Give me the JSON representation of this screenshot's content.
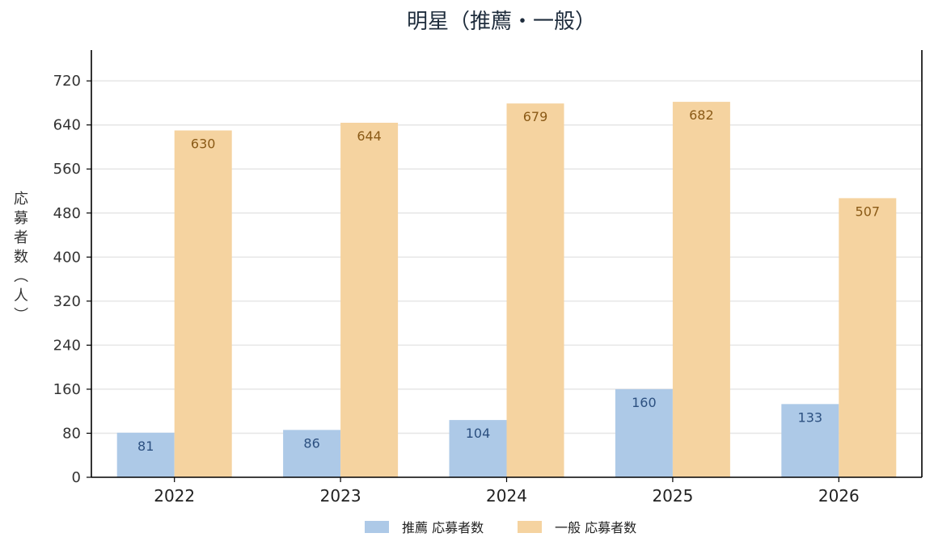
{
  "chart_data": {
    "type": "bar",
    "title": "明星（推薦・一般）",
    "xlabel": "",
    "ylabel": "応募者数（人）",
    "categories": [
      "2022",
      "2023",
      "2024",
      "2025",
      "2026"
    ],
    "series": [
      {
        "name": "推薦 応募者数",
        "values": [
          81,
          86,
          104,
          160,
          133
        ],
        "color": "#adc9e7",
        "label_color": "#2c5080"
      },
      {
        "name": "一般 応募者数",
        "values": [
          630,
          644,
          679,
          682,
          507
        ],
        "color": "#f5d3a0",
        "label_color": "#8a5a16"
      }
    ],
    "ylim": [
      0,
      776
    ],
    "yticks": [
      0,
      80,
      160,
      240,
      320,
      400,
      480,
      560,
      640,
      720
    ],
    "grid": true,
    "legend": "bottom-center"
  }
}
